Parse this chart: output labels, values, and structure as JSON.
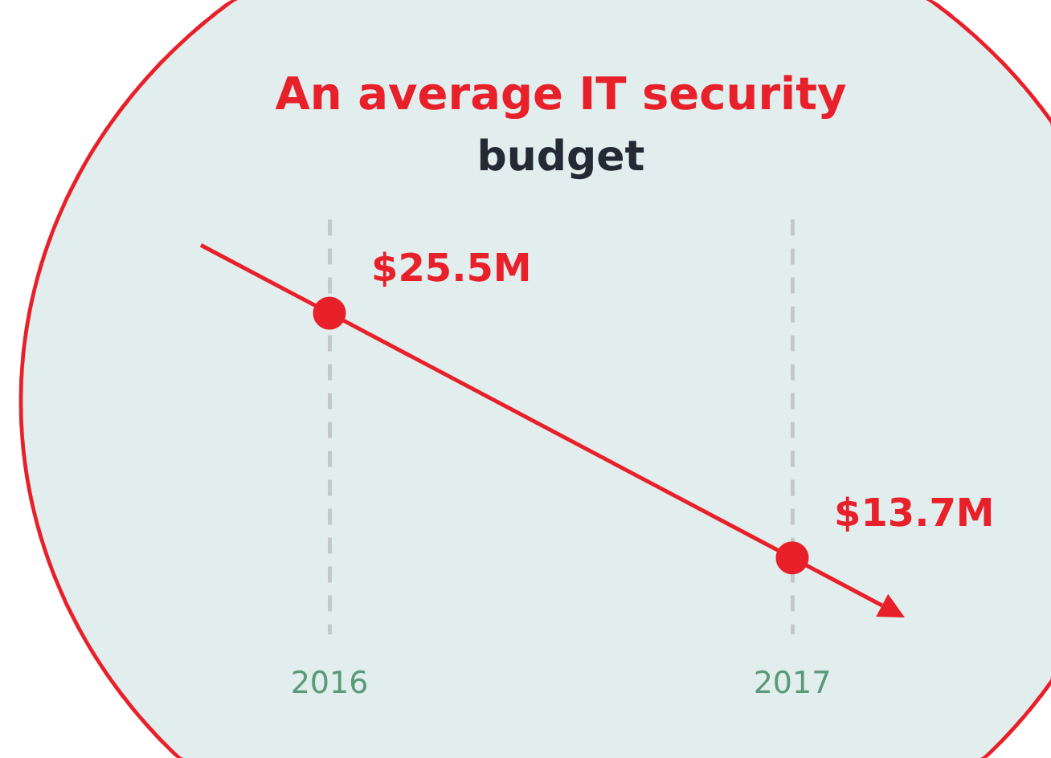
{
  "chart_data": {
    "type": "line",
    "title": "An average IT security",
    "subtitle": "budget",
    "categories": [
      "2016",
      "2017"
    ],
    "series": [
      {
        "color": "#e8202a",
        "values": [
          25.5,
          13.7
        ],
        "value_labels": [
          "$25.5M",
          "$13.7M"
        ]
      }
    ],
    "grid": "x",
    "tick_labels": "x",
    "legend": false,
    "marker": "circle",
    "line_style": "solid"
  }
}
